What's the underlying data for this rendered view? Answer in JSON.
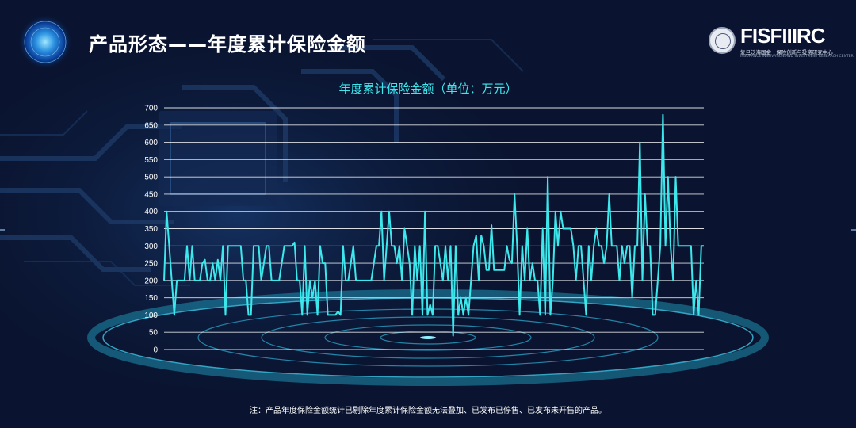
{
  "header": {
    "title": "产品形态——年度累计保险金额"
  },
  "logo": {
    "brand": "FISFIIIRC",
    "subtitle": "复旦泛海国金 · 保险创新与投资研究中心",
    "subtitle_en": "INSURANCE INNOVATION AND INVESTMENT RESEARCH CENTER"
  },
  "footnote": "注：产品年度保险金额统计已剔除年度累计保险金额无法叠加、已发布已停售、已发布未开售的产品。",
  "colors": {
    "background": "#0a1430",
    "line": "#3de8ec",
    "grid": "#ffffff"
  },
  "chart_data": {
    "type": "line",
    "title": "年度累计保险金额（单位：万元）",
    "xlabel": "",
    "ylabel": "",
    "ylim": [
      0,
      700
    ],
    "yticks": [
      "0",
      "50",
      "100",
      "150",
      "200",
      "250",
      "300",
      "350",
      "400",
      "450",
      "500",
      "550",
      "600",
      "650",
      "700"
    ],
    "grid": true,
    "legend": "none",
    "series": [
      {
        "values": [
          200,
          400,
          300,
          200,
          100,
          200,
          200,
          200,
          200,
          300,
          200,
          300,
          200,
          200,
          200,
          250,
          260,
          200,
          200,
          250,
          200,
          260,
          200,
          300,
          100,
          300,
          300,
          300,
          300,
          300,
          300,
          200,
          200,
          100,
          100,
          300,
          300,
          300,
          200,
          250,
          300,
          300,
          200,
          200,
          200,
          200,
          250,
          300,
          300,
          300,
          300,
          310,
          200,
          200,
          100,
          300,
          100,
          200,
          150,
          200,
          100,
          300,
          250,
          250,
          100,
          100,
          100,
          100,
          110,
          100,
          300,
          200,
          200,
          250,
          300,
          200,
          200,
          200,
          200,
          200,
          200,
          200,
          250,
          300,
          300,
          400,
          200,
          300,
          400,
          300,
          300,
          250,
          300,
          200,
          350,
          300,
          250,
          100,
          300,
          200,
          300,
          100,
          400,
          100,
          130,
          100,
          300,
          300,
          250,
          200,
          300,
          200,
          300,
          40,
          300,
          100,
          150,
          100,
          150,
          100,
          200,
          300,
          330,
          200,
          330,
          300,
          230,
          230,
          360,
          230,
          230,
          230,
          230,
          230,
          300,
          260,
          250,
          450,
          300,
          100,
          300,
          200,
          350,
          200,
          250,
          200,
          200,
          100,
          350,
          100,
          500,
          100,
          200,
          400,
          300,
          400,
          350,
          350,
          350,
          350,
          300,
          200,
          300,
          300,
          200,
          100,
          300,
          200,
          300,
          350,
          300,
          300,
          250,
          300,
          450,
          300,
          300,
          300,
          200,
          300,
          250,
          300,
          300,
          150,
          300,
          300,
          600,
          200,
          450,
          300,
          300,
          100,
          100,
          200,
          300,
          680,
          300,
          500,
          300,
          200,
          500,
          300,
          300,
          300,
          300,
          300,
          300,
          100,
          200,
          100,
          300,
          300
        ]
      }
    ]
  }
}
